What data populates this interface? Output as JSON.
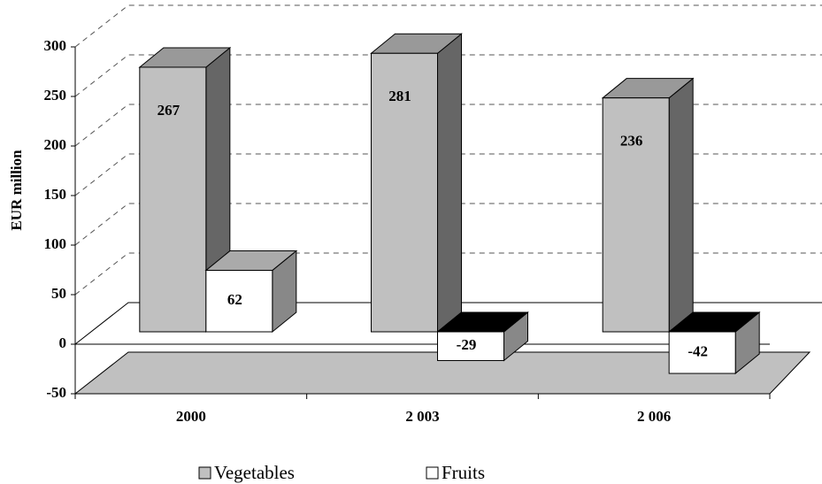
{
  "chart_data": {
    "type": "bar3d",
    "y_label": "EUR million",
    "categories": [
      "2000",
      "2 003",
      "2 006"
    ],
    "series": [
      {
        "name": "Vegetables",
        "color": "#c0c0c0",
        "values": [
          267,
          281,
          236
        ]
      },
      {
        "name": "Fruits",
        "color": "#ffffff",
        "values": [
          62,
          -29,
          -42
        ]
      }
    ],
    "ylim": [
      -50,
      300
    ],
    "yticks": [
      -50,
      0,
      50,
      100,
      150,
      200,
      250,
      300
    ],
    "grid": true,
    "legend": "bottom"
  }
}
